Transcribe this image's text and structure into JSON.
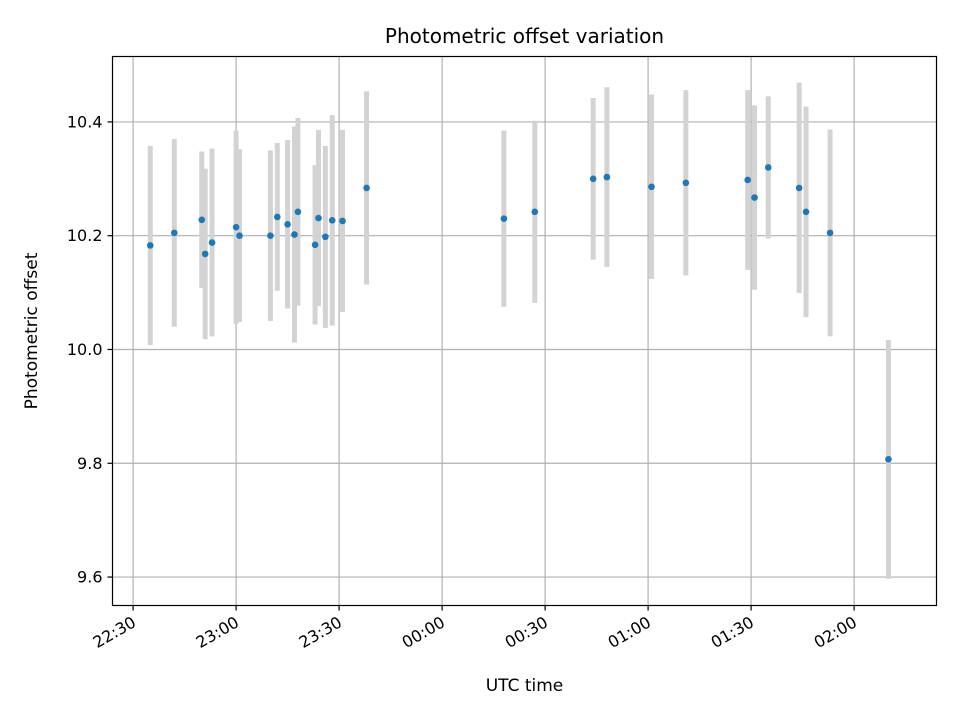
{
  "chart_data": {
    "type": "scatter",
    "title": "Photometric offset variation",
    "xlabel": "UTC time",
    "ylabel": "Photometric offset",
    "xlim": [
      "22:24",
      "02:24"
    ],
    "ylim": [
      9.55,
      10.515
    ],
    "grid": true,
    "x_ticks": [
      "22:30",
      "23:00",
      "23:30",
      "00:00",
      "00:30",
      "01:00",
      "01:30",
      "02:00"
    ],
    "y_ticks": [
      "9.6",
      "9.8",
      "10.0",
      "10.2",
      "10.4"
    ],
    "colors": {
      "point": "#1f77b4",
      "errorbar": "#d3d3d3",
      "grid": "#b0b0b0"
    },
    "points": [
      {
        "x": "22:35",
        "y": 10.183,
        "err": 0.175
      },
      {
        "x": "22:42",
        "y": 10.205,
        "err": 0.165
      },
      {
        "x": "22:50",
        "y": 10.228,
        "err": 0.12
      },
      {
        "x": "22:51",
        "y": 10.168,
        "err": 0.15
      },
      {
        "x": "22:53",
        "y": 10.188,
        "err": 0.165
      },
      {
        "x": "23:00",
        "y": 10.215,
        "err": 0.17
      },
      {
        "x": "23:01",
        "y": 10.2,
        "err": 0.152
      },
      {
        "x": "23:10",
        "y": 10.2,
        "err": 0.15
      },
      {
        "x": "23:12",
        "y": 10.233,
        "err": 0.13
      },
      {
        "x": "23:15",
        "y": 10.22,
        "err": 0.148
      },
      {
        "x": "23:17",
        "y": 10.202,
        "err": 0.19
      },
      {
        "x": "23:18",
        "y": 10.242,
        "err": 0.165
      },
      {
        "x": "23:23",
        "y": 10.184,
        "err": 0.14
      },
      {
        "x": "23:24",
        "y": 10.231,
        "err": 0.155
      },
      {
        "x": "23:26",
        "y": 10.198,
        "err": 0.16
      },
      {
        "x": "23:28",
        "y": 10.227,
        "err": 0.185
      },
      {
        "x": "23:31",
        "y": 10.226,
        "err": 0.16
      },
      {
        "x": "23:38",
        "y": 10.284,
        "err": 0.17
      },
      {
        "x": "00:18",
        "y": 10.23,
        "err": 0.155
      },
      {
        "x": "00:27",
        "y": 10.242,
        "err": 0.16
      },
      {
        "x": "00:44",
        "y": 10.3,
        "err": 0.142
      },
      {
        "x": "00:48",
        "y": 10.303,
        "err": 0.158
      },
      {
        "x": "01:01",
        "y": 10.286,
        "err": 0.162
      },
      {
        "x": "01:11",
        "y": 10.293,
        "err": 0.163
      },
      {
        "x": "01:29",
        "y": 10.298,
        "err": 0.158
      },
      {
        "x": "01:31",
        "y": 10.267,
        "err": 0.162
      },
      {
        "x": "01:35",
        "y": 10.32,
        "err": 0.125
      },
      {
        "x": "01:44",
        "y": 10.284,
        "err": 0.185
      },
      {
        "x": "01:46",
        "y": 10.242,
        "err": 0.185
      },
      {
        "x": "01:53",
        "y": 10.205,
        "err": 0.182
      },
      {
        "x": "02:10",
        "y": 9.807,
        "err": 0.21
      }
    ]
  }
}
